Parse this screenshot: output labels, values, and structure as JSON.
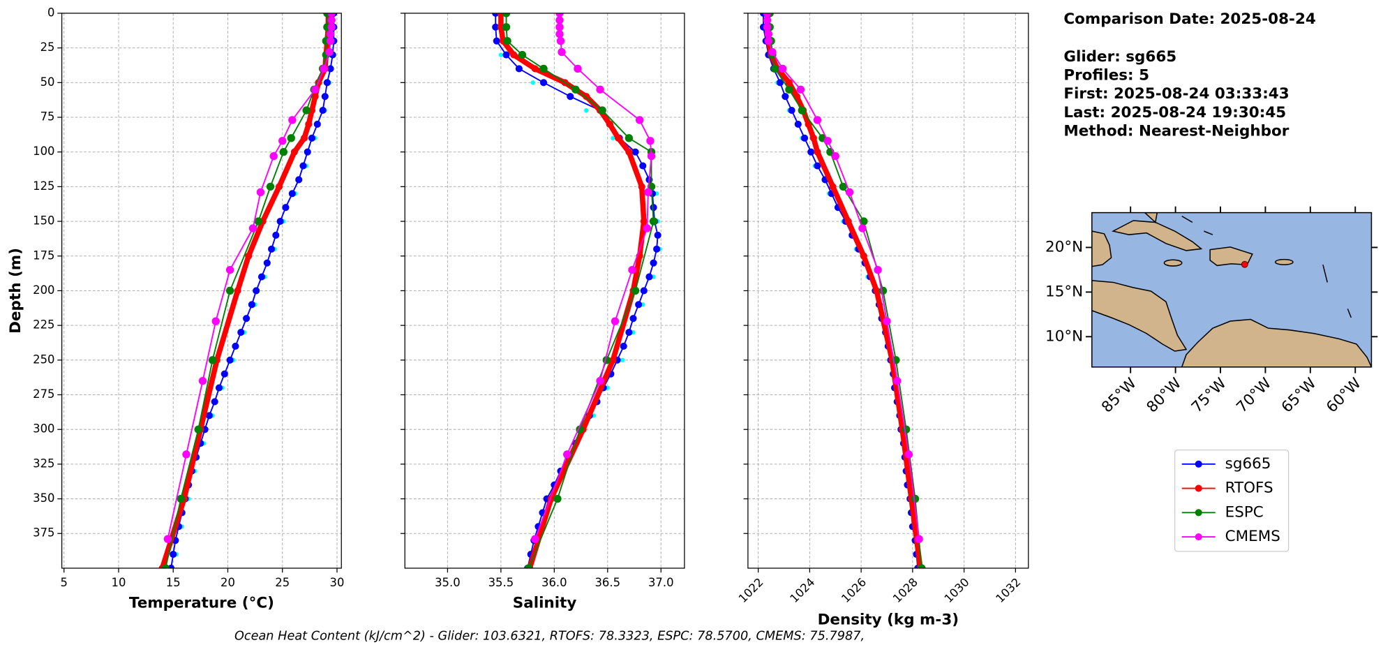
{
  "chart_data": [
    {
      "type": "line",
      "xlabel": "Temperature (°C)",
      "ylabel": "Depth (m)",
      "y_inverted": true,
      "grid": true,
      "xlim": [
        4.8,
        30.4
      ],
      "xticks": [
        5,
        10,
        15,
        20,
        25,
        30
      ],
      "ylim": [
        0,
        400
      ],
      "yticks": [
        0,
        25,
        50,
        75,
        100,
        125,
        150,
        175,
        200,
        225,
        250,
        275,
        300,
        325,
        350,
        375
      ],
      "series": [
        {
          "color": "#00ffff",
          "line_width": 0,
          "marker_radius": 2.5,
          "depth": [
            10,
            30,
            50,
            70,
            90,
            110,
            130,
            150,
            170,
            190,
            210,
            230,
            250,
            270,
            290,
            310,
            330,
            350,
            370,
            390
          ],
          "values": [
            29.6,
            29.5,
            29.3,
            28.9,
            28.0,
            27.2,
            26.2,
            25.1,
            24.3,
            23.4,
            22.5,
            21.5,
            20.5,
            19.5,
            18.6,
            17.8,
            17.0,
            16.4,
            15.8,
            15.3
          ]
        },
        {
          "name": "sg665",
          "color": "#0000ff",
          "line_width": 1.5,
          "marker_radius": 4,
          "depth": [
            0,
            10,
            20,
            30,
            40,
            50,
            60,
            70,
            80,
            90,
            100,
            110,
            120,
            130,
            140,
            150,
            160,
            170,
            180,
            190,
            200,
            210,
            220,
            230,
            240,
            250,
            260,
            270,
            280,
            290,
            300,
            310,
            320,
            330,
            340,
            350,
            360,
            370,
            380,
            390,
            400
          ],
          "values": [
            29.7,
            29.7,
            29.7,
            29.6,
            29.4,
            29.1,
            28.9,
            28.7,
            28.2,
            27.7,
            27.3,
            26.9,
            26.5,
            25.9,
            25.3,
            24.8,
            24.4,
            24.0,
            23.6,
            23.1,
            22.6,
            22.2,
            21.7,
            21.2,
            20.7,
            20.2,
            19.7,
            19.2,
            18.8,
            18.3,
            17.9,
            17.5,
            17.1,
            16.7,
            16.4,
            16.1,
            15.8,
            15.5,
            15.2,
            15.0,
            14.8
          ]
        },
        {
          "name": "RTOFS",
          "color": "#ff0000",
          "line_width": 6,
          "marker_radius": 4,
          "depth": [
            0,
            10,
            20,
            30,
            40,
            50,
            60,
            70,
            80,
            90,
            100,
            125,
            150,
            175,
            200,
            250,
            300,
            350,
            400
          ],
          "values": [
            29.2,
            29.2,
            29.1,
            29.0,
            28.9,
            28.3,
            28.0,
            27.7,
            27.4,
            27.0,
            26.1,
            24.7,
            23.2,
            21.9,
            20.9,
            19.0,
            17.5,
            16.0,
            14.0
          ]
        },
        {
          "name": "ESPC",
          "color": "#008000",
          "line_width": 1.5,
          "marker_radius": 4.5,
          "depth": [
            0,
            10,
            20,
            30,
            40,
            55,
            70,
            90,
            100,
            125,
            150,
            200,
            250,
            300,
            350,
            400
          ],
          "values": [
            29.1,
            29.1,
            29.0,
            29.0,
            28.7,
            27.9,
            27.2,
            25.8,
            25.1,
            23.9,
            22.8,
            20.2,
            18.6,
            17.3,
            15.7,
            14.3
          ]
        },
        {
          "name": "CMEMS",
          "color": "#ff00ff",
          "line_width": 1.5,
          "marker_radius": 4.5,
          "depth": [
            0,
            5,
            10,
            15,
            20,
            28,
            40,
            55,
            77,
            92,
            103,
            129,
            155,
            185,
            222,
            265,
            318,
            379
          ],
          "values": [
            29.5,
            29.5,
            29.5,
            29.4,
            29.4,
            29.3,
            28.8,
            28.0,
            25.9,
            25.0,
            24.2,
            23.0,
            22.3,
            20.2,
            18.9,
            17.7,
            16.2,
            14.5
          ]
        }
      ]
    },
    {
      "type": "line",
      "xlabel": "Salinity",
      "y_inverted": true,
      "grid": true,
      "xlim": [
        34.6,
        37.22
      ],
      "xticks": [
        {
          "value": 35,
          "label": "35.0"
        },
        {
          "value": 35.5,
          "label": "35.5"
        },
        {
          "value": 36,
          "label": "36.0"
        },
        {
          "value": 36.5,
          "label": "36.5"
        },
        {
          "value": 37,
          "label": "37.0"
        }
      ],
      "ylim": [
        0,
        400
      ],
      "yticks": [
        0,
        25,
        50,
        75,
        100,
        125,
        150,
        175,
        200,
        225,
        250,
        275,
        300,
        325,
        350,
        375
      ],
      "series": [
        {
          "color": "#00ffff",
          "line_width": 0,
          "marker_radius": 2.5,
          "depth": [
            10,
            30,
            50,
            70,
            90,
            110,
            130,
            150,
            170,
            190,
            210,
            230,
            250,
            270,
            290,
            310,
            330,
            350,
            370,
            390
          ],
          "values": [
            35.44,
            35.5,
            35.8,
            36.3,
            36.55,
            36.82,
            36.96,
            36.97,
            36.99,
            36.93,
            36.83,
            36.74,
            36.64,
            36.5,
            36.37,
            36.22,
            36.08,
            35.97,
            35.87,
            35.8
          ]
        },
        {
          "name": "sg665",
          "color": "#0000ff",
          "line_width": 1.5,
          "marker_radius": 4,
          "depth": [
            0,
            10,
            20,
            30,
            40,
            50,
            60,
            70,
            80,
            90,
            100,
            110,
            120,
            130,
            140,
            150,
            160,
            170,
            180,
            190,
            200,
            210,
            220,
            230,
            240,
            250,
            260,
            270,
            280,
            290,
            300,
            310,
            320,
            330,
            340,
            350,
            360,
            370,
            380,
            390,
            400
          ],
          "values": [
            35.45,
            35.45,
            35.46,
            35.55,
            35.67,
            35.9,
            36.15,
            36.43,
            36.52,
            36.61,
            36.76,
            36.83,
            36.89,
            36.92,
            36.93,
            36.94,
            36.97,
            36.96,
            36.93,
            36.89,
            36.84,
            36.79,
            36.74,
            36.7,
            36.65,
            36.59,
            36.53,
            36.46,
            36.4,
            36.33,
            36.26,
            36.2,
            36.13,
            36.06,
            36.0,
            35.93,
            35.89,
            35.85,
            35.81,
            35.78,
            35.75
          ]
        },
        {
          "name": "RTOFS",
          "color": "#ff0000",
          "line_width": 6,
          "marker_radius": 4,
          "depth": [
            0,
            10,
            20,
            30,
            40,
            50,
            60,
            70,
            80,
            90,
            100,
            125,
            150,
            175,
            200,
            250,
            300,
            350,
            400
          ],
          "values": [
            35.5,
            35.5,
            35.52,
            35.62,
            35.82,
            36.1,
            36.3,
            36.43,
            36.52,
            36.6,
            36.7,
            36.82,
            36.84,
            36.8,
            36.74,
            36.55,
            36.27,
            35.97,
            35.77
          ]
        },
        {
          "name": "ESPC",
          "color": "#008000",
          "line_width": 1.5,
          "marker_radius": 4.5,
          "depth": [
            0,
            10,
            20,
            30,
            40,
            55,
            70,
            90,
            100,
            125,
            150,
            200,
            250,
            300,
            350,
            400
          ],
          "values": [
            35.55,
            35.55,
            35.56,
            35.7,
            35.9,
            36.2,
            36.45,
            36.7,
            36.91,
            36.91,
            36.93,
            36.76,
            36.49,
            36.24,
            36.03,
            35.76
          ]
        },
        {
          "name": "CMEMS",
          "color": "#ff00ff",
          "line_width": 1.5,
          "marker_radius": 4.5,
          "depth": [
            0,
            5,
            10,
            15,
            20,
            28,
            40,
            55,
            77,
            92,
            103,
            129,
            155,
            185,
            222,
            265,
            318,
            379
          ],
          "values": [
            36.05,
            36.05,
            36.05,
            36.05,
            36.06,
            36.07,
            36.22,
            36.43,
            36.8,
            36.9,
            36.91,
            36.88,
            36.87,
            36.73,
            36.57,
            36.43,
            36.12,
            35.82
          ]
        }
      ]
    },
    {
      "type": "line",
      "xlabel": "Density (kg m-3)",
      "y_inverted": true,
      "grid": true,
      "xtick_rotation": 45,
      "xlim": [
        1021.6,
        1032.5
      ],
      "xticks": [
        1022,
        1024,
        1026,
        1028,
        1030,
        1032
      ],
      "ylim": [
        0,
        400
      ],
      "yticks": [
        0,
        25,
        50,
        75,
        100,
        125,
        150,
        175,
        200,
        225,
        250,
        275,
        300,
        325,
        350,
        375
      ],
      "series": [
        {
          "color": "#00ffff",
          "line_width": 0,
          "marker_radius": 2.5,
          "depth": [
            10,
            30,
            50,
            70,
            90,
            110,
            130,
            150,
            170,
            190,
            210,
            230,
            250,
            270,
            290,
            310,
            330,
            350,
            370,
            390
          ],
          "values": [
            1022.15,
            1022.35,
            1022.75,
            1023.2,
            1023.7,
            1024.2,
            1024.75,
            1025.3,
            1025.8,
            1026.25,
            1026.65,
            1026.9,
            1027.1,
            1027.3,
            1027.45,
            1027.6,
            1027.75,
            1027.9,
            1028.0,
            1028.15
          ]
        },
        {
          "name": "sg665",
          "color": "#0000ff",
          "line_width": 1.5,
          "marker_radius": 4,
          "depth": [
            0,
            10,
            20,
            30,
            40,
            50,
            60,
            70,
            80,
            90,
            100,
            110,
            120,
            130,
            140,
            150,
            160,
            170,
            180,
            190,
            200,
            210,
            220,
            230,
            240,
            250,
            260,
            270,
            280,
            290,
            300,
            310,
            320,
            330,
            340,
            350,
            360,
            370,
            380,
            390,
            400
          ],
          "values": [
            1022.2,
            1022.2,
            1022.3,
            1022.4,
            1022.6,
            1022.85,
            1023.05,
            1023.3,
            1023.55,
            1023.8,
            1024.05,
            1024.3,
            1024.6,
            1024.85,
            1025.1,
            1025.4,
            1025.65,
            1025.9,
            1026.15,
            1026.35,
            1026.55,
            1026.7,
            1026.8,
            1026.95,
            1027.05,
            1027.15,
            1027.25,
            1027.3,
            1027.4,
            1027.5,
            1027.55,
            1027.65,
            1027.7,
            1027.75,
            1027.8,
            1027.9,
            1027.95,
            1028.0,
            1028.1,
            1028.15,
            1028.2
          ]
        },
        {
          "name": "RTOFS",
          "color": "#ff0000",
          "line_width": 6,
          "marker_radius": 4,
          "depth": [
            0,
            10,
            20,
            30,
            40,
            50,
            60,
            70,
            80,
            90,
            100,
            125,
            150,
            175,
            200,
            250,
            300,
            350,
            400
          ],
          "values": [
            1022.35,
            1022.35,
            1022.4,
            1022.5,
            1022.75,
            1023.2,
            1023.5,
            1023.75,
            1023.95,
            1024.15,
            1024.3,
            1024.9,
            1025.5,
            1026.1,
            1026.6,
            1027.2,
            1027.6,
            1027.95,
            1028.3
          ]
        },
        {
          "name": "ESPC",
          "color": "#008000",
          "line_width": 1.5,
          "marker_radius": 4.5,
          "depth": [
            0,
            10,
            20,
            30,
            40,
            55,
            70,
            90,
            100,
            125,
            150,
            200,
            250,
            300,
            350,
            400
          ],
          "values": [
            1022.45,
            1022.45,
            1022.5,
            1022.55,
            1022.65,
            1023.2,
            1023.7,
            1024.5,
            1024.8,
            1025.3,
            1026.1,
            1026.85,
            1027.35,
            1027.75,
            1028.1,
            1028.35
          ]
        },
        {
          "name": "CMEMS",
          "color": "#ff00ff",
          "line_width": 1.5,
          "marker_radius": 4.5,
          "depth": [
            0,
            5,
            10,
            15,
            20,
            28,
            40,
            55,
            77,
            92,
            103,
            129,
            155,
            185,
            222,
            265,
            318,
            379
          ],
          "values": [
            1022.35,
            1022.35,
            1022.35,
            1022.4,
            1022.4,
            1022.55,
            1022.95,
            1023.65,
            1024.3,
            1024.7,
            1025.0,
            1025.55,
            1026.05,
            1026.65,
            1027.0,
            1027.4,
            1027.85,
            1028.25
          ]
        }
      ]
    },
    {
      "type": "map",
      "xlim": [
        -89.3,
        -58.2
      ],
      "ylim": [
        6.6,
        23.9
      ],
      "xticks": [
        {
          "value": -85,
          "label": "85°W"
        },
        {
          "value": -80,
          "label": "80°W"
        },
        {
          "value": -75,
          "label": "75°W"
        },
        {
          "value": -70,
          "label": "70°W"
        },
        {
          "value": -65,
          "label": "65°W"
        },
        {
          "value": -60,
          "label": "60°W"
        }
      ],
      "yticks": [
        {
          "value": 10,
          "label": "10°N"
        },
        {
          "value": 15,
          "label": "15°N"
        },
        {
          "value": 20,
          "label": "20°N"
        }
      ],
      "points": [
        {
          "lon": -72.3,
          "lat": 18.1,
          "color": "#ff0000"
        }
      ]
    }
  ],
  "annotations": [
    "Comparison Date: 2025-08-24",
    "Glider: sg665",
    "Profiles: 5",
    "First: 2025-08-24 03:33:43",
    "Last: 2025-08-24 19:30:45",
    "Method: Nearest-Neighbor"
  ],
  "footer": "Ocean Heat Content (kJ/cm^2) - Glider: 103.6321,  RTOFS: 78.3323,  ESPC: 78.5700,  CMEMS: 75.7987,"
}
